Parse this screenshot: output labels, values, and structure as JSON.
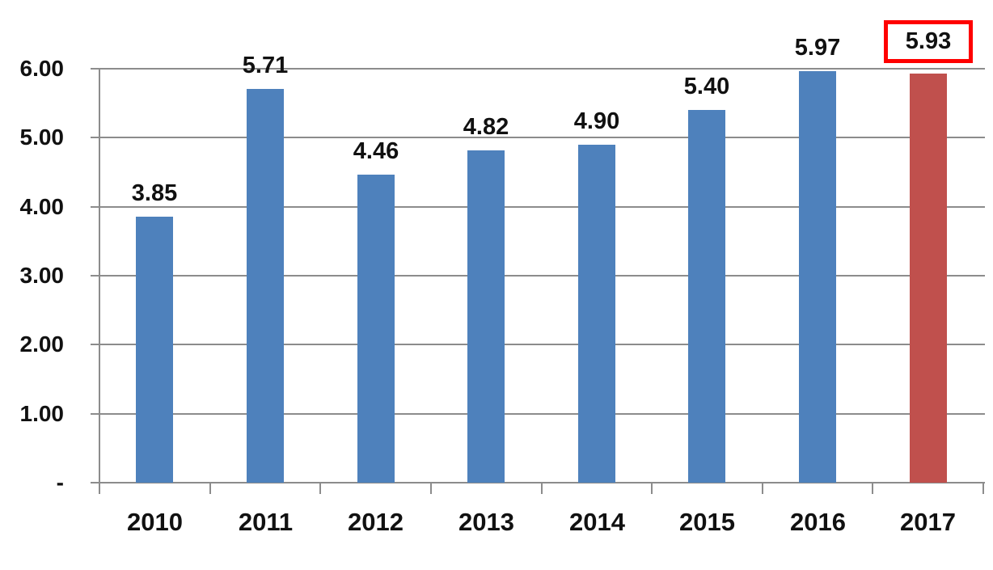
{
  "chart_data": {
    "type": "bar",
    "title": "",
    "xlabel": "",
    "ylabel": "",
    "categories": [
      "2010",
      "2011",
      "2012",
      "2013",
      "2014",
      "2015",
      "2016",
      "2017"
    ],
    "series": [
      {
        "name": "value",
        "values": [
          3.85,
          5.71,
          4.46,
          4.82,
          4.9,
          5.4,
          5.97,
          5.93
        ]
      }
    ],
    "data_labels": [
      "3.85",
      "5.71",
      "4.46",
      "4.82",
      "4.90",
      "5.40",
      "5.97",
      "5.93"
    ],
    "ylim": [
      0,
      6
    ],
    "y_ticks": [
      {
        "value": 6,
        "label": "6.00"
      },
      {
        "value": 5,
        "label": "5.00"
      },
      {
        "value": 4,
        "label": "4.00"
      },
      {
        "value": 3,
        "label": "3.00"
      },
      {
        "value": 2,
        "label": "2.00"
      },
      {
        "value": 1,
        "label": "1.00"
      },
      {
        "value": 0,
        "label": "-"
      }
    ],
    "grid": true,
    "legend_position": "none",
    "highlight": {
      "category": "2017",
      "boxed_label": "5.93"
    },
    "colors": {
      "bar": "#4E81BC",
      "highlight_bar": "#C0504D",
      "highlight_box_border": "#FF0000",
      "grid": "#8C8C8C",
      "axis": "#8C8C8C",
      "text": "#111111",
      "background": "#FFFFFF"
    }
  }
}
